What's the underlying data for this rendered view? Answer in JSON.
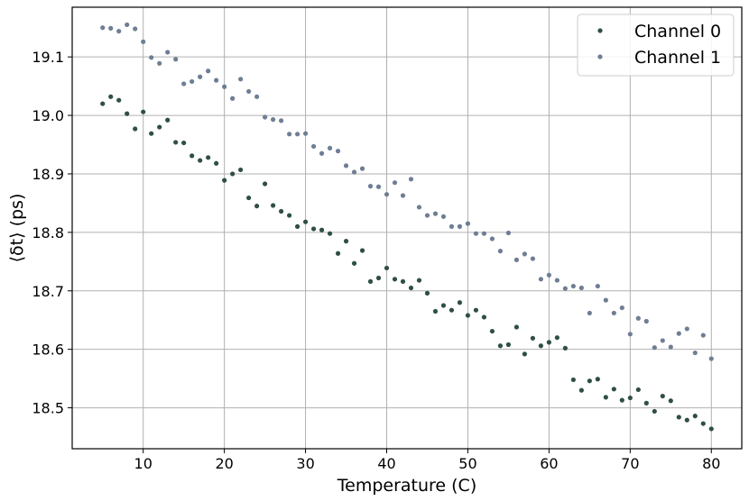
{
  "chart_data": {
    "type": "scatter",
    "title": "",
    "xlabel": "Temperature (C)",
    "ylabel": "⟨δt⟩ (ps)",
    "xlim": [
      1.25,
      83.75
    ],
    "ylim": [
      18.43,
      19.185
    ],
    "xticks": [
      10,
      20,
      30,
      40,
      50,
      60,
      70,
      80
    ],
    "yticks": [
      18.5,
      18.6,
      18.7,
      18.8,
      18.9,
      19.0,
      19.1
    ],
    "xtick_labels": [
      "10",
      "20",
      "30",
      "40",
      "50",
      "60",
      "70",
      "80"
    ],
    "ytick_labels": [
      "18.5",
      "18.6",
      "18.7",
      "18.8",
      "18.9",
      "19.0",
      "19.1"
    ],
    "grid": true,
    "legend_position": "top-right",
    "series": [
      {
        "name": "Channel 0",
        "color": "#2f4f45",
        "x": [
          5,
          6,
          7,
          8,
          9,
          10,
          11,
          12,
          13,
          14,
          15,
          16,
          17,
          18,
          19,
          20,
          21,
          22,
          23,
          24,
          25,
          26,
          27,
          28,
          29,
          30,
          31,
          32,
          33,
          34,
          35,
          36,
          37,
          38,
          39,
          40,
          41,
          42,
          43,
          44,
          45,
          46,
          47,
          48,
          49,
          50,
          51,
          52,
          53,
          54,
          55,
          56,
          57,
          58,
          59,
          60,
          61,
          62,
          63,
          64,
          65,
          66,
          67,
          68,
          69,
          70,
          71,
          72,
          73,
          74,
          75,
          76,
          77,
          78,
          79,
          80
        ],
        "y": [
          19.02,
          19.032,
          19.026,
          19.003,
          18.977,
          19.006,
          18.969,
          18.98,
          18.992,
          18.954,
          18.953,
          18.931,
          18.923,
          18.928,
          18.918,
          18.889,
          18.9,
          18.907,
          18.859,
          18.845,
          18.883,
          18.846,
          18.836,
          18.829,
          18.81,
          18.818,
          18.806,
          18.804,
          18.798,
          18.764,
          18.785,
          18.747,
          18.769,
          18.716,
          18.722,
          18.739,
          18.72,
          18.716,
          18.705,
          18.718,
          18.696,
          18.665,
          18.675,
          18.667,
          18.68,
          18.658,
          18.667,
          18.655,
          18.631,
          18.606,
          18.608,
          18.638,
          18.592,
          18.619,
          18.606,
          18.612,
          18.62,
          18.602,
          18.548,
          18.53,
          18.546,
          18.549,
          18.518,
          18.532,
          18.513,
          18.517,
          18.531,
          18.508,
          18.494,
          18.52,
          18.512,
          18.484,
          18.479,
          18.486,
          18.473,
          18.464
        ]
      },
      {
        "name": "Channel 1",
        "color": "#6e7e94",
        "x": [
          5,
          6,
          7,
          8,
          9,
          10,
          11,
          12,
          13,
          14,
          15,
          16,
          17,
          18,
          19,
          20,
          21,
          22,
          23,
          24,
          25,
          26,
          27,
          28,
          29,
          30,
          31,
          32,
          33,
          34,
          35,
          36,
          37,
          38,
          39,
          40,
          41,
          42,
          43,
          44,
          45,
          46,
          47,
          48,
          49,
          50,
          51,
          52,
          53,
          54,
          55,
          56,
          57,
          58,
          59,
          60,
          61,
          62,
          63,
          64,
          65,
          66,
          67,
          68,
          69,
          70,
          71,
          72,
          73,
          74,
          75,
          76,
          77,
          78,
          79,
          80
        ],
        "y": [
          19.15,
          19.149,
          19.144,
          19.155,
          19.148,
          19.126,
          19.099,
          19.089,
          19.108,
          19.096,
          19.054,
          19.058,
          19.066,
          19.076,
          19.06,
          19.049,
          19.029,
          19.062,
          19.041,
          19.032,
          18.997,
          18.993,
          18.991,
          18.968,
          18.968,
          18.969,
          18.947,
          18.935,
          18.944,
          18.939,
          18.914,
          18.903,
          18.909,
          18.879,
          18.878,
          18.865,
          18.885,
          18.863,
          18.891,
          18.843,
          18.829,
          18.832,
          18.827,
          18.81,
          18.81,
          18.815,
          18.798,
          18.798,
          18.789,
          18.768,
          18.799,
          18.753,
          18.763,
          18.755,
          18.72,
          18.727,
          18.718,
          18.704,
          18.708,
          18.705,
          18.662,
          18.708,
          18.684,
          18.662,
          18.671,
          18.626,
          18.653,
          18.648,
          18.603,
          18.615,
          18.604,
          18.627,
          18.635,
          18.594,
          18.624,
          18.584
        ]
      }
    ]
  }
}
